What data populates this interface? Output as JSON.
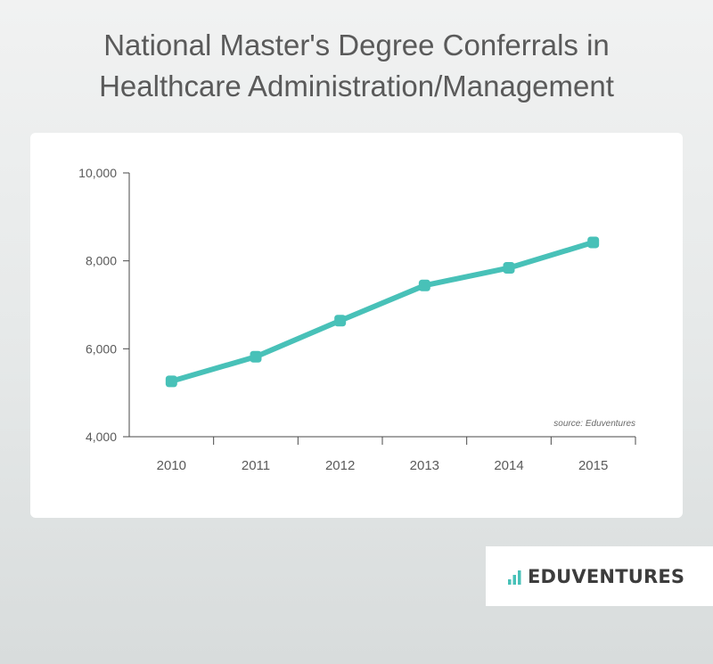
{
  "title_line1": "National Master's Degree Conferrals in",
  "title_line2": "Healthcare Administration/Management",
  "logo": {
    "text": "EDUVENTURES",
    "bar_color": "#48c1b8"
  },
  "chart_data": {
    "type": "line",
    "title": "National Master's Degree Conferrals in Healthcare Administration/Management",
    "categories": [
      "2010",
      "2011",
      "2012",
      "2013",
      "2014",
      "2015"
    ],
    "series": [
      {
        "values": [
          5260,
          5820,
          6640,
          7440,
          7840,
          8420
        ]
      }
    ],
    "ylim": [
      4000,
      10000
    ],
    "yticks": [
      4000,
      6000,
      8000,
      10000
    ],
    "ytick_labels": [
      "4,000",
      "6,000",
      "8,000",
      "10,000"
    ],
    "xlabel": "",
    "ylabel": "",
    "grid": false,
    "line_color": "#48c1b8",
    "source": "source: Eduventures"
  }
}
